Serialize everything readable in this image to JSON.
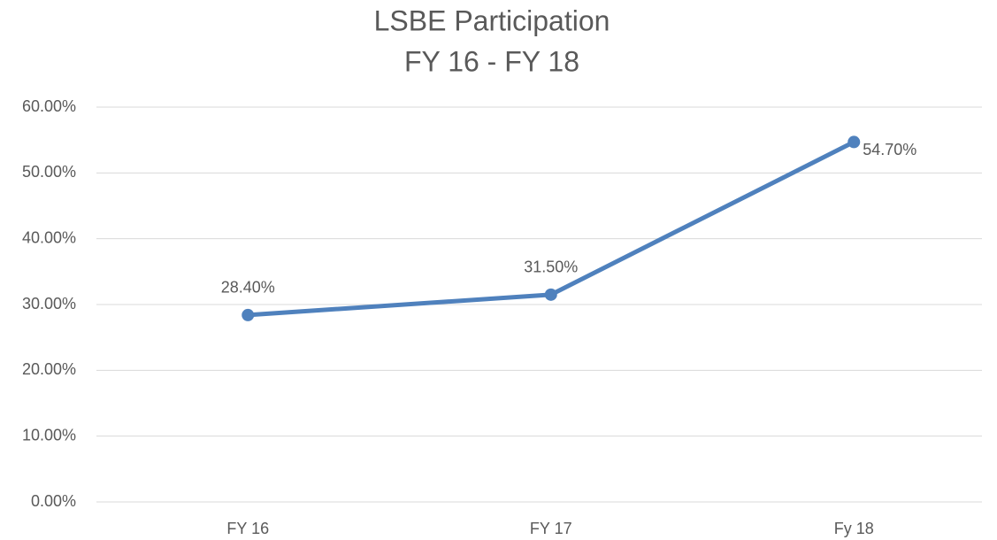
{
  "chart_data": {
    "type": "line",
    "title": "LSBE Participation",
    "subtitle": "FY 16 - FY 18",
    "categories": [
      "FY 16",
      "FY 17",
      "Fy 18"
    ],
    "series": [
      {
        "color": "#4f81bd",
        "values": [
          28.4,
          31.5,
          54.7
        ],
        "value_labels": [
          "28.40%",
          "31.50%",
          "54.70%"
        ]
      }
    ],
    "ylim": [
      0,
      60
    ],
    "yticks": [
      {
        "value": 0,
        "label": "0.00%"
      },
      {
        "value": 10,
        "label": "10.00%"
      },
      {
        "value": 20,
        "label": "20.00%"
      },
      {
        "value": 30,
        "label": "30.00%"
      },
      {
        "value": 40,
        "label": "40.00%"
      },
      {
        "value": 50,
        "label": "50.00%"
      },
      {
        "value": 60,
        "label": "60.00%"
      }
    ],
    "grid": true
  }
}
